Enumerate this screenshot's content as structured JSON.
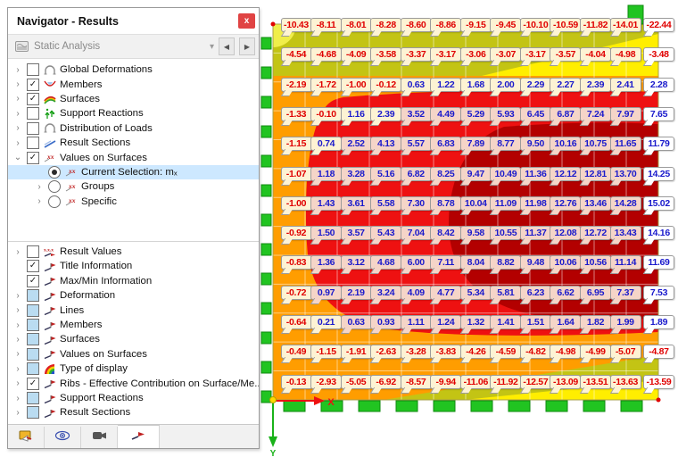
{
  "window": {
    "title": "Navigator - Results",
    "close_label": "x"
  },
  "toolbar": {
    "case_selector": "Static Analysis",
    "icons": [
      "analysis-type-icon",
      "chevron-down-icon",
      "prev-case-icon",
      "next-case-icon"
    ]
  },
  "tree_results": {
    "items": [
      {
        "label": "Global Deformations",
        "expander": "collapsed",
        "control": "checkbox-unchecked",
        "icon": "deformation-arc-icon",
        "level": 0
      },
      {
        "label": "Members",
        "expander": "collapsed",
        "control": "checkbox-checked",
        "icon": "members-icon",
        "level": 0
      },
      {
        "label": "Surfaces",
        "expander": "collapsed",
        "control": "checkbox-checked",
        "icon": "surfaces-icon",
        "level": 0
      },
      {
        "label": "Support Reactions",
        "expander": "collapsed",
        "control": "checkbox-unchecked",
        "icon": "support-reactions-icon",
        "level": 0
      },
      {
        "label": "Distribution of Loads",
        "expander": "collapsed",
        "control": "checkbox-unchecked",
        "icon": "deformation-arc-icon",
        "level": 0
      },
      {
        "label": "Result Sections",
        "expander": "collapsed",
        "control": "checkbox-unchecked",
        "icon": "section-line-icon",
        "level": 0
      },
      {
        "label": "Values on Surfaces",
        "expander": "expanded",
        "control": "checkbox-checked",
        "icon": "values-xx-icon",
        "level": 0
      },
      {
        "label": "Current Selection: mₓ",
        "expander": "none",
        "control": "radio-selected",
        "icon": "values-xx-icon",
        "level": 1,
        "selected": true
      },
      {
        "label": "Groups",
        "expander": "collapsed",
        "control": "radio",
        "icon": "values-xx-icon",
        "level": 1
      },
      {
        "label": "Specific",
        "expander": "collapsed",
        "control": "radio",
        "icon": "values-xx-icon",
        "level": 1
      }
    ]
  },
  "tree_display": {
    "items": [
      {
        "label": "Result Values",
        "expander": "collapsed",
        "control": "checkbox-unchecked",
        "icon": "result-values-icon",
        "level": 0
      },
      {
        "label": "Title Information",
        "expander": "none",
        "control": "checkbox-checked",
        "icon": "flag-icon",
        "level": 0
      },
      {
        "label": "Max/Min Information",
        "expander": "none",
        "control": "checkbox-checked",
        "icon": "flag-icon",
        "level": 0
      },
      {
        "label": "Deformation",
        "expander": "collapsed",
        "control": "checkbox-partial",
        "icon": "flag-icon",
        "level": 0
      },
      {
        "label": "Lines",
        "expander": "collapsed",
        "control": "checkbox-partial",
        "icon": "flag-icon",
        "level": 0
      },
      {
        "label": "Members",
        "expander": "collapsed",
        "control": "checkbox-partial",
        "icon": "flag-icon",
        "level": 0
      },
      {
        "label": "Surfaces",
        "expander": "collapsed",
        "control": "checkbox-partial",
        "icon": "flag-icon",
        "level": 0
      },
      {
        "label": "Values on Surfaces",
        "expander": "collapsed",
        "control": "checkbox-partial",
        "icon": "flag-icon",
        "level": 0
      },
      {
        "label": "Type of display",
        "expander": "collapsed",
        "control": "checkbox-partial",
        "icon": "rainbow-icon",
        "level": 0
      },
      {
        "label": "Ribs - Effective Contribution on Surface/Me...",
        "expander": "collapsed",
        "control": "checkbox-checked",
        "icon": "flag-icon",
        "level": 0
      },
      {
        "label": "Support Reactions",
        "expander": "collapsed",
        "control": "checkbox-partial",
        "icon": "flag-icon",
        "level": 0
      },
      {
        "label": "Result Sections",
        "expander": "collapsed",
        "control": "checkbox-partial",
        "icon": "flag-icon",
        "level": 0
      }
    ]
  },
  "tabs": [
    {
      "icon": "data-navigator-icon",
      "active": false
    },
    {
      "icon": "views-eye-icon",
      "active": false
    },
    {
      "icon": "camera-icon",
      "active": false
    },
    {
      "icon": "results-flag-icon",
      "active": true
    }
  ],
  "plot": {
    "axes": {
      "x_label": "X",
      "y_label": "Y"
    },
    "palette": {
      "olive": "#c3c414",
      "yellow": "#ffee00",
      "yellow_soft": "#f0ee4a",
      "orange": "#ff9d00",
      "red": "#ee1111",
      "dark_red": "#b30000",
      "support_green": "#21c421",
      "support_green_dark": "#0f8a0f",
      "label_neg": "#e00000",
      "label_pos": "#1a1acc",
      "selection_blue": "#cde8ff",
      "close_red": "#e04343",
      "cream": "#fdf3d4",
      "pink": "#f5d5c8",
      "axis_x_red": "#ee1111",
      "axis_y_green": "#19b219",
      "origin_yellow": "#ffd900"
    }
  },
  "chart_data": {
    "type": "heatmap",
    "quantity": "Current Selection: mₓ",
    "n_cols": 13,
    "n_rows": 13,
    "rows": [
      {
        "values": [
          "-10.43",
          "-8.11",
          "-8.01",
          "-8.28",
          "-8.60",
          "-8.86",
          "-9.15",
          "-9.45",
          "-10.10",
          "-10.59",
          "-11.82",
          "-14.01",
          "-22.44"
        ],
        "pink_from": null
      },
      {
        "values": [
          "-4.54",
          "-4.68",
          "-4.09",
          "-3.58",
          "-3.37",
          "-3.17",
          "-3.06",
          "-3.07",
          "-3.17",
          "-3.57",
          "-4.04",
          "-4.98",
          "-3.48"
        ],
        "pink_from": null
      },
      {
        "values": [
          "-2.19",
          "-1.72",
          "-1.00",
          "-0.12",
          "0.63",
          "1.22",
          "1.68",
          "2.00",
          "2.29",
          "2.27",
          "2.39",
          "2.41",
          "2.28"
        ],
        "pink_from": null
      },
      {
        "values": [
          "-1.33",
          "-0.10",
          "1.16",
          "2.39",
          "3.52",
          "4.49",
          "5.29",
          "5.93",
          "6.45",
          "6.87",
          "7.24",
          "7.97",
          "7.65"
        ],
        "pink_from": 4
      },
      {
        "values": [
          "-1.15",
          "0.74",
          "2.52",
          "4.13",
          "5.57",
          "6.83",
          "7.89",
          "8.77",
          "9.50",
          "10.16",
          "10.75",
          "11.65",
          "11.79"
        ],
        "pink_from": 2
      },
      {
        "values": [
          "-1.07",
          "1.18",
          "3.28",
          "5.16",
          "6.82",
          "8.25",
          "9.47",
          "10.49",
          "11.36",
          "12.12",
          "12.81",
          "13.70",
          "14.25"
        ],
        "pink_from": 1
      },
      {
        "values": [
          "-1.00",
          "1.43",
          "3.61",
          "5.58",
          "7.30",
          "8.78",
          "10.04",
          "11.09",
          "11.98",
          "12.76",
          "13.46",
          "14.28",
          "15.02"
        ],
        "pink_from": 1
      },
      {
        "values": [
          "-0.92",
          "1.50",
          "3.57",
          "5.43",
          "7.04",
          "8.42",
          "9.58",
          "10.55",
          "11.37",
          "12.08",
          "12.72",
          "13.43",
          "14.16"
        ],
        "pink_from": 1
      },
      {
        "values": [
          "-0.83",
          "1.36",
          "3.12",
          "4.68",
          "6.00",
          "7.11",
          "8.04",
          "8.82",
          "9.48",
          "10.06",
          "10.56",
          "11.14",
          "11.69"
        ],
        "pink_from": 1
      },
      {
        "values": [
          "-0.72",
          "0.97",
          "2.19",
          "3.24",
          "4.09",
          "4.77",
          "5.34",
          "5.81",
          "6.23",
          "6.62",
          "6.95",
          "7.37",
          "7.53"
        ],
        "pink_from": 1
      },
      {
        "values": [
          "-0.64",
          "0.21",
          "0.63",
          "0.93",
          "1.11",
          "1.24",
          "1.32",
          "1.41",
          "1.51",
          "1.64",
          "1.82",
          "1.99",
          "1.89"
        ],
        "pink_from": 2
      },
      {
        "values": [
          "-0.49",
          "-1.15",
          "-1.91",
          "-2.63",
          "-3.28",
          "-3.83",
          "-4.26",
          "-4.59",
          "-4.82",
          "-4.98",
          "-4.99",
          "-5.07",
          "-4.87"
        ],
        "pink_from": null
      },
      {
        "values": [
          "-0.13",
          "-2.93",
          "-5.05",
          "-6.92",
          "-8.57",
          "-9.94",
          "-11.06",
          "-11.92",
          "-12.57",
          "-13.09",
          "-13.51",
          "-13.63",
          "-13.59"
        ],
        "pink_from": null
      }
    ]
  }
}
